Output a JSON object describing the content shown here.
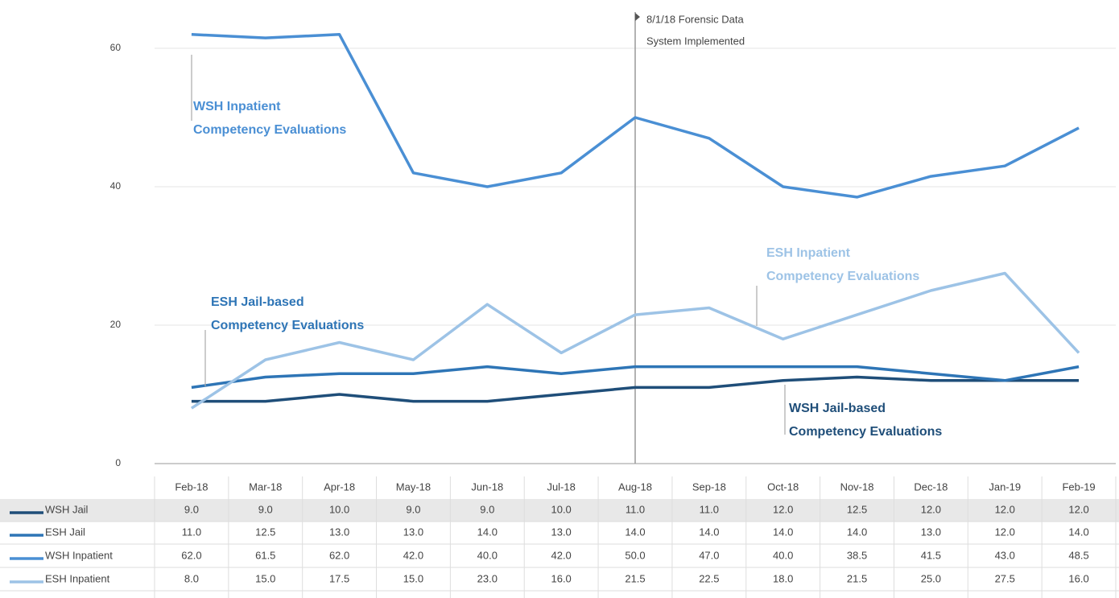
{
  "chart_data": {
    "type": "line",
    "categories": [
      "Feb-18",
      "Mar-18",
      "Apr-18",
      "May-18",
      "Jun-18",
      "Jul-18",
      "Aug-18",
      "Sep-18",
      "Oct-18",
      "Nov-18",
      "Dec-18",
      "Jan-19",
      "Feb-19"
    ],
    "series": [
      {
        "name": "WSH Jail",
        "color": "#1f4e79",
        "values": [
          9,
          9,
          10,
          9,
          9,
          10,
          11,
          11,
          12,
          12.5,
          12,
          12,
          12
        ],
        "value_labels": [
          "9.0",
          "9.0",
          "10.0",
          "9.0",
          "9.0",
          "10.0",
          "11.0",
          "11.0",
          "12.0",
          "12.5",
          "12.0",
          "12.0",
          "12.0"
        ]
      },
      {
        "name": "ESH Jail",
        "color": "#2e75b6",
        "values": [
          11,
          12.5,
          13,
          13,
          14,
          13,
          14,
          14,
          14,
          14,
          13,
          12,
          14
        ],
        "value_labels": [
          "11.0",
          "12.5",
          "13.0",
          "13.0",
          "14.0",
          "13.0",
          "14.0",
          "14.0",
          "14.0",
          "14.0",
          "13.0",
          "12.0",
          "14.0"
        ]
      },
      {
        "name": "WSH Inpatient",
        "color": "#4a8fd4",
        "values": [
          62,
          61.5,
          62,
          42,
          40,
          42,
          50,
          47,
          40,
          38.5,
          41.5,
          43,
          48.5
        ],
        "value_labels": [
          "62.0",
          "61.5",
          "62.0",
          "42.0",
          "40.0",
          "42.0",
          "50.0",
          "47.0",
          "40.0",
          "38.5",
          "41.5",
          "43.0",
          "48.5"
        ]
      },
      {
        "name": "ESH Inpatient",
        "color": "#9dc3e6",
        "values": [
          8,
          15,
          17.5,
          15,
          23,
          16,
          21.5,
          22.5,
          18,
          21.5,
          25,
          27.5,
          16
        ],
        "value_labels": [
          "8.0",
          "15.0",
          "17.5",
          "15.0",
          "23.0",
          "16.0",
          "21.5",
          "22.5",
          "18.0",
          "21.5",
          "25.0",
          "27.5",
          "16.0"
        ]
      }
    ],
    "ylim": [
      0,
      65
    ],
    "yticks": [
      0,
      20,
      40,
      60
    ],
    "grid": true,
    "event": {
      "at": "Aug-18",
      "text": [
        "8/1/18 Forensic Data",
        "System Implemented"
      ]
    },
    "annotations": [
      {
        "series": 2,
        "text": [
          "WSH Inpatient",
          "Competency Evaluations"
        ]
      },
      {
        "series": 1,
        "text": [
          "ESH Jail-based",
          "Competency Evaluations"
        ]
      },
      {
        "series": 3,
        "text": [
          "ESH Inpatient",
          "Competency Evaluations"
        ]
      },
      {
        "series": 0,
        "text": [
          "WSH Jail-based",
          "Competency Evaluations"
        ]
      }
    ]
  }
}
